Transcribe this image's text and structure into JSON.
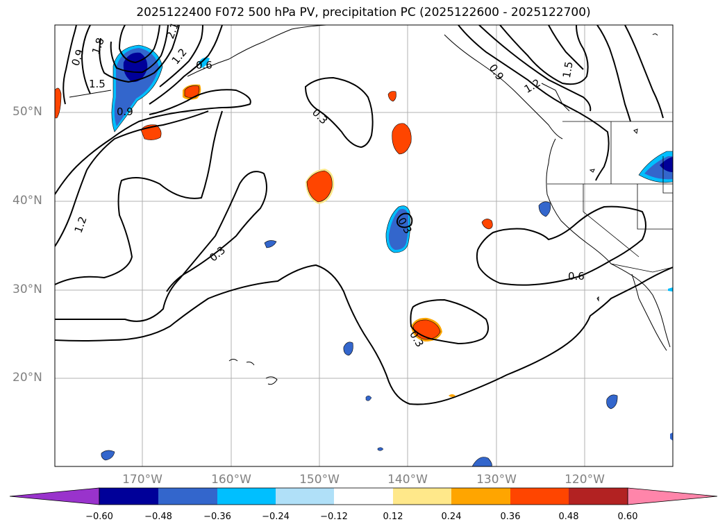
{
  "title": "2025122400 F072 500 hPa PV, precipitation PC (2025122600 - 2025122700)",
  "lat_labels": [
    "50°N",
    "40°N",
    "30°N",
    "20°N"
  ],
  "lon_labels": [
    "170°W",
    "160°W",
    "150°W",
    "140°W",
    "130°W",
    "120°W"
  ],
  "contour_labels": [
    "0.9",
    "1.8",
    "2.1",
    "1.5",
    "1.2",
    "0.9",
    "0.6",
    "0.3",
    "0.9",
    "1.2",
    "1.5",
    "0.3",
    "0.6",
    "1.2",
    "0.3",
    "0.3"
  ],
  "colorbar": {
    "ticks": [
      "−0.60",
      "−0.48",
      "−0.36",
      "−0.24",
      "−0.12",
      "0.12",
      "0.24",
      "0.36",
      "0.48",
      "0.60"
    ],
    "colors": [
      "#9933cc",
      "#000099",
      "#3366cc",
      "#00bfff",
      "#b0e0f8",
      "#ffffff",
      "#ffe88a",
      "#ffa500",
      "#ff4500",
      "#b22222",
      "#ff85aa"
    ]
  }
}
